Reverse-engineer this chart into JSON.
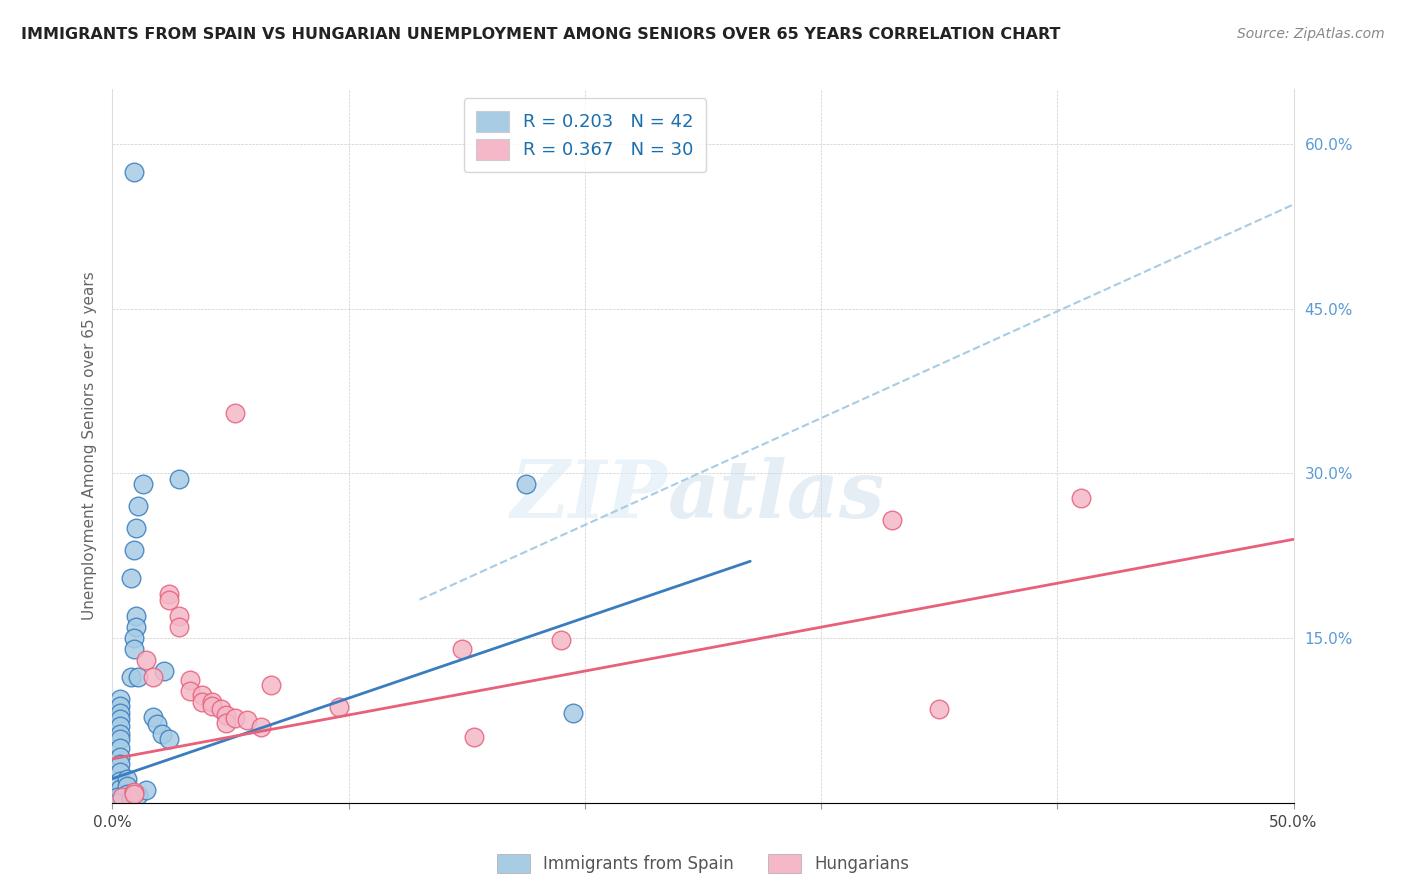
{
  "title": "IMMIGRANTS FROM SPAIN VS HUNGARIAN UNEMPLOYMENT AMONG SENIORS OVER 65 YEARS CORRELATION CHART",
  "source": "Source: ZipAtlas.com",
  "ylabel": "Unemployment Among Seniors over 65 years",
  "xlim": [
    0,
    0.5
  ],
  "ylim": [
    0,
    0.65
  ],
  "legend_label1": "R = 0.203   N = 42",
  "legend_label2": "R = 0.367   N = 30",
  "color_blue": "#a8cce4",
  "color_pink": "#f4b8c8",
  "color_blue_line": "#3a7dbf",
  "color_pink_line": "#e8607a",
  "color_dashed": "#a8cce4",
  "watermark_zip": "ZIP",
  "watermark_atlas": "atlas",
  "blue_points": [
    [
      0.009,
      0.575
    ],
    [
      0.013,
      0.29
    ],
    [
      0.011,
      0.27
    ],
    [
      0.01,
      0.25
    ],
    [
      0.009,
      0.23
    ],
    [
      0.008,
      0.205
    ],
    [
      0.01,
      0.17
    ],
    [
      0.01,
      0.16
    ],
    [
      0.009,
      0.15
    ],
    [
      0.009,
      0.14
    ],
    [
      0.008,
      0.115
    ],
    [
      0.028,
      0.295
    ],
    [
      0.022,
      0.12
    ],
    [
      0.011,
      0.115
    ],
    [
      0.003,
      0.095
    ],
    [
      0.003,
      0.088
    ],
    [
      0.003,
      0.082
    ],
    [
      0.003,
      0.076
    ],
    [
      0.003,
      0.07
    ],
    [
      0.003,
      0.063
    ],
    [
      0.003,
      0.058
    ],
    [
      0.003,
      0.05
    ],
    [
      0.003,
      0.042
    ],
    [
      0.003,
      0.035
    ],
    [
      0.003,
      0.028
    ],
    [
      0.003,
      0.02
    ],
    [
      0.003,
      0.013
    ],
    [
      0.003,
      0.005
    ],
    [
      0.006,
      0.022
    ],
    [
      0.006,
      0.015
    ],
    [
      0.006,
      0.008
    ],
    [
      0.002,
      0.005
    ],
    [
      0.002,
      0.0
    ],
    [
      0.008,
      0.004
    ],
    [
      0.011,
      0.007
    ],
    [
      0.014,
      0.012
    ],
    [
      0.017,
      0.078
    ],
    [
      0.019,
      0.072
    ],
    [
      0.021,
      0.063
    ],
    [
      0.024,
      0.058
    ],
    [
      0.175,
      0.29
    ],
    [
      0.195,
      0.082
    ]
  ],
  "pink_points": [
    [
      0.052,
      0.355
    ],
    [
      0.014,
      0.13
    ],
    [
      0.017,
      0.115
    ],
    [
      0.024,
      0.19
    ],
    [
      0.024,
      0.185
    ],
    [
      0.028,
      0.17
    ],
    [
      0.028,
      0.16
    ],
    [
      0.033,
      0.112
    ],
    [
      0.033,
      0.102
    ],
    [
      0.038,
      0.098
    ],
    [
      0.038,
      0.092
    ],
    [
      0.042,
      0.092
    ],
    [
      0.042,
      0.088
    ],
    [
      0.046,
      0.085
    ],
    [
      0.048,
      0.08
    ],
    [
      0.048,
      0.073
    ],
    [
      0.052,
      0.077
    ],
    [
      0.057,
      0.075
    ],
    [
      0.063,
      0.069
    ],
    [
      0.067,
      0.107
    ],
    [
      0.096,
      0.087
    ],
    [
      0.148,
      0.14
    ],
    [
      0.153,
      0.06
    ],
    [
      0.004,
      0.005
    ],
    [
      0.009,
      0.01
    ],
    [
      0.009,
      0.008
    ],
    [
      0.33,
      0.258
    ],
    [
      0.35,
      0.085
    ],
    [
      0.41,
      0.278
    ],
    [
      0.19,
      0.148
    ]
  ],
  "blue_line_x": [
    0.0,
    0.27
  ],
  "blue_line_y": [
    0.022,
    0.22
  ],
  "pink_line_x": [
    0.0,
    0.5
  ],
  "pink_line_y": [
    0.04,
    0.24
  ],
  "dashed_line_x": [
    0.13,
    0.5
  ],
  "dashed_line_y": [
    0.185,
    0.545
  ],
  "figsize": [
    14.06,
    8.92
  ],
  "dpi": 100
}
